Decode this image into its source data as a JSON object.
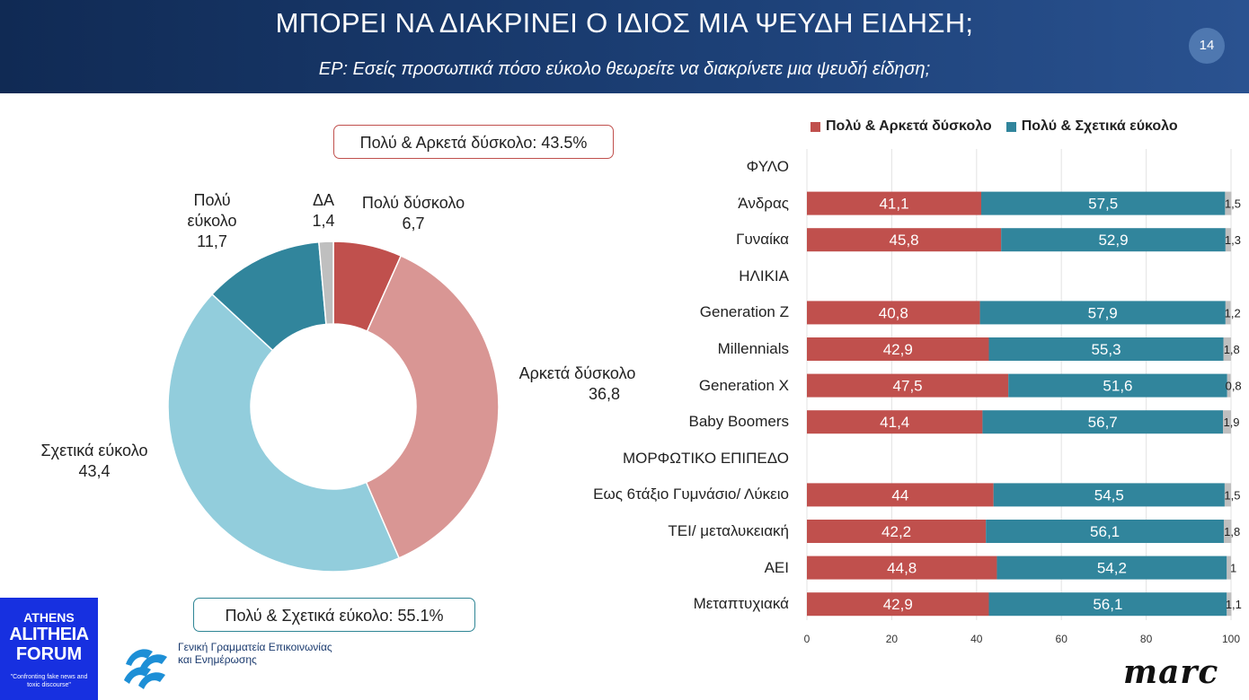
{
  "header": {
    "title": "ΜΠΟΡΕΙ ΝΑ ΔΙΑΚΡΙΝΕΙ Ο ΙΔΙΟΣ ΜΙΑ ΨΕΥΔΗ ΕΙΔΗΣΗ;",
    "subtitle": "ΕΡ: Εσείς προσωπικά πόσο εύκολο θεωρείτε να διακρίνετε μια ψευδή είδηση;",
    "page_number": "14"
  },
  "callouts": {
    "difficult": "Πολύ & Αρκετά δύσκολο: 43.5%",
    "easy": "Πολύ & Σχετικά εύκολο: 55.1%"
  },
  "logos": {
    "athens_line1": "ATHENS",
    "athens_line2": "ALITHEIA",
    "athens_line3": "FORUM",
    "athens_tagline": "\"Confronting fake news and toxic discourse\"",
    "gov_line1": "Γενική Γραμματεία Επικοινωνίας",
    "gov_line2": "και Ενημέρωσης",
    "marc": "marc"
  },
  "colors": {
    "very_difficult": "#c0504d",
    "fairly_difficult": "#d99694",
    "fairly_easy": "#92cddc",
    "very_easy": "#31859c",
    "na": "#bfbfbf",
    "bar_difficult": "#c0504d",
    "bar_easy": "#31859c",
    "bar_na": "#bfbfbf"
  },
  "chart_data": [
    {
      "type": "pie",
      "slices": [
        {
          "label": "Πολύ δύσκολο",
          "value": 6.7,
          "value_text": "6,7"
        },
        {
          "label": "Αρκετά δύσκολο",
          "value": 36.8,
          "value_text": "36,8"
        },
        {
          "label": "Σχετικά εύκολο",
          "value": 43.4,
          "value_text": "43,4"
        },
        {
          "label": "Πολύ εύκολο",
          "value": 11.7,
          "value_text": "11,7"
        },
        {
          "label": "ΔΑ",
          "value": 1.4,
          "value_text": "1,4"
        }
      ]
    },
    {
      "type": "bar",
      "orientation": "horizontal",
      "stacked": true,
      "legend": [
        "Πολύ & Αρκετά δύσκολο",
        "Πολύ & Σχετικά εύκολο"
      ],
      "legend_position": "top",
      "xlim": [
        0,
        100
      ],
      "x_ticks": [
        "0",
        "20",
        "40",
        "60",
        "80",
        "100"
      ],
      "grid": true,
      "rows": [
        {
          "label": "ΦΥΛΟ",
          "header": true
        },
        {
          "label": "Άνδρας",
          "values": [
            41.1,
            57.5,
            1.5
          ],
          "texts": [
            "41,1",
            "57,5",
            "1,5"
          ]
        },
        {
          "label": "Γυναίκα",
          "values": [
            45.8,
            52.9,
            1.3
          ],
          "texts": [
            "45,8",
            "52,9",
            "1,3"
          ]
        },
        {
          "label": "ΗΛΙΚΙΑ",
          "header": true
        },
        {
          "label": "Generation Z",
          "values": [
            40.8,
            57.9,
            1.2
          ],
          "texts": [
            "40,8",
            "57,9",
            "1,2"
          ]
        },
        {
          "label": "Millennials",
          "values": [
            42.9,
            55.3,
            1.8
          ],
          "texts": [
            "42,9",
            "55,3",
            "1,8"
          ]
        },
        {
          "label": "Generation X",
          "values": [
            47.5,
            51.6,
            0.8
          ],
          "texts": [
            "47,5",
            "51,6",
            "0,8"
          ]
        },
        {
          "label": "Baby Boomers",
          "values": [
            41.4,
            56.7,
            1.9
          ],
          "texts": [
            "41,4",
            "56,7",
            "1,9"
          ]
        },
        {
          "label": "ΜΟΡΦΩΤΙΚΟ ΕΠΙΠΕΔΟ",
          "header": true
        },
        {
          "label": "Εως 6τάξιο Γυμνάσιο/ Λύκειο",
          "values": [
            44,
            54.5,
            1.5
          ],
          "texts": [
            "44",
            "54,5",
            "1,5"
          ]
        },
        {
          "label": "ΤΕΙ/ μεταλυκειακή",
          "values": [
            42.2,
            56.1,
            1.8
          ],
          "texts": [
            "42,2",
            "56,1",
            "1,8"
          ]
        },
        {
          "label": "ΑΕΙ",
          "values": [
            44.8,
            54.2,
            1
          ],
          "texts": [
            "44,8",
            "54,2",
            "1"
          ]
        },
        {
          "label": "Μεταπτυχιακά",
          "values": [
            42.9,
            56.1,
            1.1
          ],
          "texts": [
            "42,9",
            "56,1",
            "1,1"
          ]
        }
      ]
    }
  ]
}
